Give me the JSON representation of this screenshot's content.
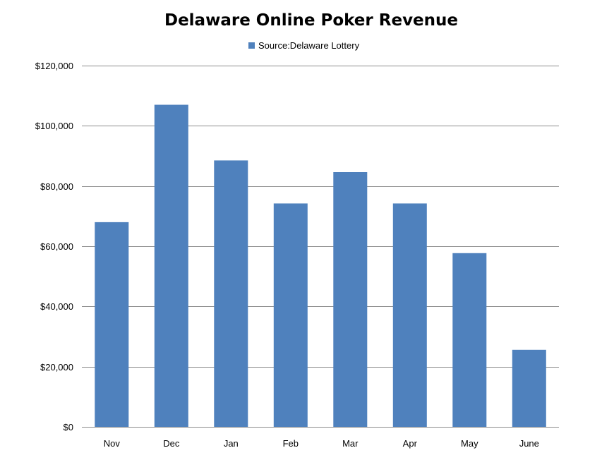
{
  "chart_data": {
    "type": "bar",
    "title": "Delaware Online Poker Revenue",
    "xlabel": "",
    "ylabel": "",
    "categories": [
      "Nov",
      "Dec",
      "Jan",
      "Feb",
      "Mar",
      "Apr",
      "May",
      "June"
    ],
    "series": [
      {
        "name": "Source:Delaware Lottery",
        "values": [
          68000,
          107000,
          88500,
          74200,
          84600,
          74200,
          57700,
          25600
        ]
      }
    ],
    "ylim": [
      0,
      120000
    ],
    "y_ticks": [
      0,
      20000,
      40000,
      60000,
      80000,
      100000,
      120000
    ],
    "y_tick_labels": [
      "$0",
      "$20,000",
      "$40,000",
      "$60,000",
      "$80,000",
      "$100,000",
      "$120,000"
    ],
    "grid": true,
    "legend_position": "top-center",
    "colors": {
      "bar": "#4f81bd",
      "grid": "#8c8c8c",
      "text": "#000000"
    }
  }
}
